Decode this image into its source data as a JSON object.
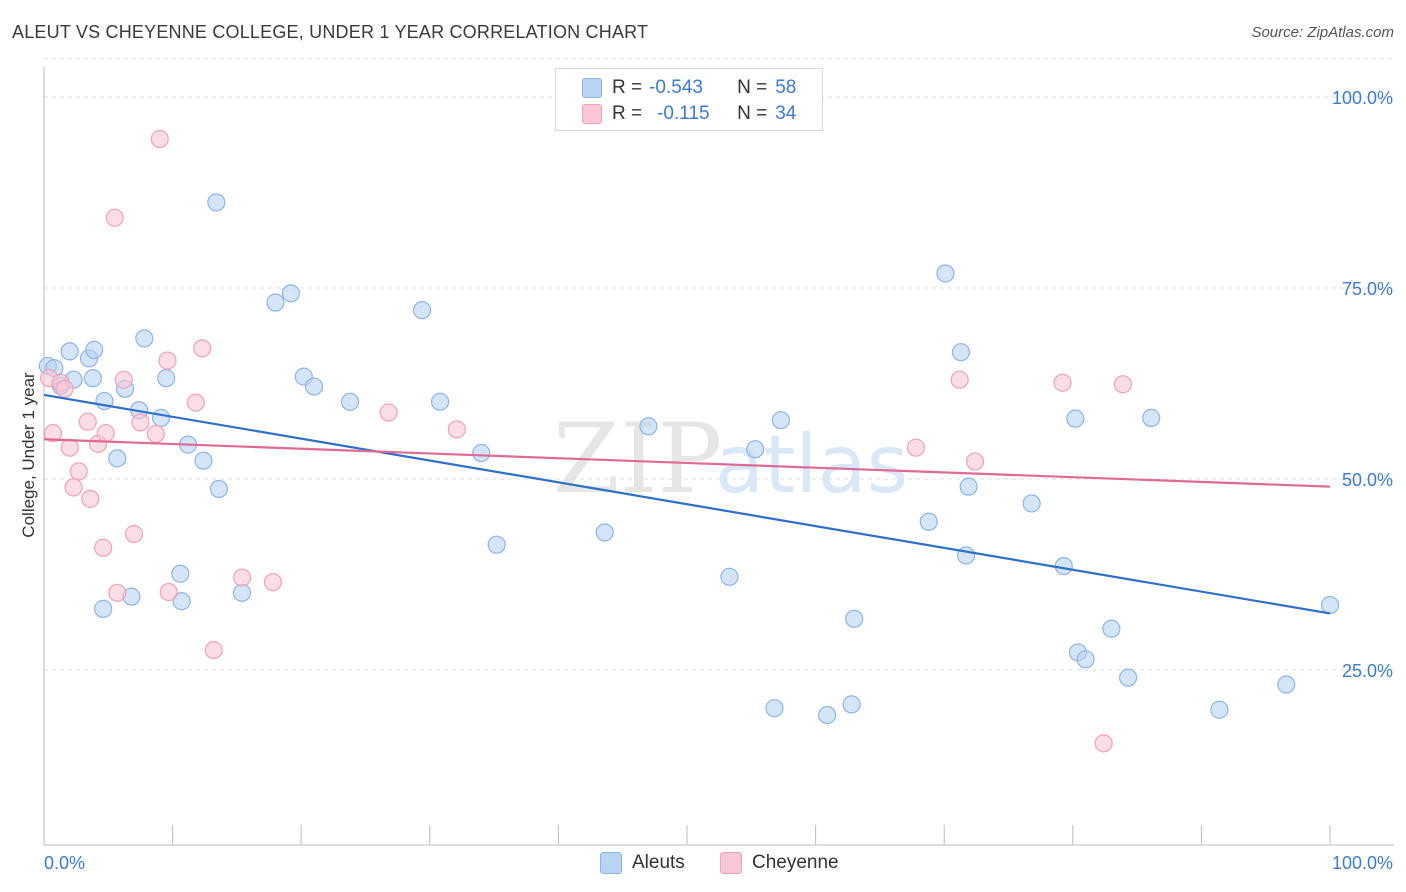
{
  "title": "ALEUT VS CHEYENNE COLLEGE, UNDER 1 YEAR CORRELATION CHART",
  "source": "Source: ZipAtlas.com",
  "watermark": {
    "zip": "ZIP",
    "atlas": "atlas"
  },
  "colors": {
    "aleut_fill": "#b9d3f3",
    "aleut_stroke": "#8fb4e4",
    "aleut_line": "#2f6fcc",
    "cheyenne_fill": "#f8c6d5",
    "cheyenne_stroke": "#eea3b9",
    "cheyenne_line": "#e06a95",
    "tick_label": "#3d7bd0",
    "grid": "#dcdcdc"
  },
  "legend": {
    "rows": [
      {
        "r_label": "R =",
        "r_value": "-0.543",
        "n_label": "N =",
        "n_value": "58"
      },
      {
        "r_label": "R =",
        "r_value": "-0.115",
        "n_label": "N =",
        "n_value": "34"
      }
    ]
  },
  "bottom_legend": {
    "items": [
      "Aleuts",
      "Cheyenne"
    ]
  },
  "chart_data": {
    "type": "scatter",
    "title": "ALEUT VS CHEYENNE COLLEGE, UNDER 1 YEAR CORRELATION CHART",
    "xlabel": "",
    "ylabel": "College, Under 1 year",
    "xlim": [
      0,
      100
    ],
    "ylim": [
      0,
      105
    ],
    "x_tick_labels": [
      "0.0%",
      "100.0%"
    ],
    "y_ticks": [
      25,
      50,
      75,
      100
    ],
    "y_tick_labels": [
      "25.0%",
      "50.0%",
      "75.0%",
      "100.0%"
    ],
    "grid": true,
    "legend_position": "top-center",
    "series": [
      {
        "name": "Aleuts",
        "r": -0.543,
        "n": 58,
        "trend": {
          "x": [
            0,
            100
          ],
          "y": [
            61.0,
            32.4
          ]
        },
        "points": [
          [
            0.3,
            64.8
          ],
          [
            0.8,
            64.5
          ],
          [
            1.3,
            62.2
          ],
          [
            2.0,
            66.7
          ],
          [
            2.3,
            63.0
          ],
          [
            3.5,
            65.8
          ],
          [
            3.8,
            63.2
          ],
          [
            3.9,
            66.9
          ],
          [
            4.6,
            33.0
          ],
          [
            4.7,
            60.2
          ],
          [
            5.7,
            52.7
          ],
          [
            6.3,
            61.8
          ],
          [
            6.8,
            34.6
          ],
          [
            7.4,
            59.0
          ],
          [
            7.8,
            68.4
          ],
          [
            9.1,
            58.0
          ],
          [
            9.5,
            63.2
          ],
          [
            10.6,
            37.6
          ],
          [
            10.7,
            34.0
          ],
          [
            11.2,
            54.5
          ],
          [
            12.4,
            52.4
          ],
          [
            13.4,
            86.2
          ],
          [
            13.6,
            48.7
          ],
          [
            15.4,
            35.1
          ],
          [
            18.0,
            73.1
          ],
          [
            19.2,
            74.3
          ],
          [
            20.2,
            63.4
          ],
          [
            21.0,
            62.1
          ],
          [
            23.8,
            60.1
          ],
          [
            29.4,
            72.1
          ],
          [
            30.8,
            60.1
          ],
          [
            34.0,
            53.4
          ],
          [
            35.2,
            41.4
          ],
          [
            43.6,
            43.0
          ],
          [
            47.0,
            56.9
          ],
          [
            53.3,
            37.2
          ],
          [
            55.3,
            53.9
          ],
          [
            56.8,
            20.0
          ],
          [
            57.3,
            57.7
          ],
          [
            60.9,
            19.1
          ],
          [
            62.8,
            20.5
          ],
          [
            63.0,
            31.7
          ],
          [
            68.8,
            44.4
          ],
          [
            70.1,
            76.9
          ],
          [
            71.3,
            66.6
          ],
          [
            71.7,
            40.0
          ],
          [
            71.9,
            49.0
          ],
          [
            76.8,
            46.8
          ],
          [
            79.3,
            38.6
          ],
          [
            80.2,
            57.9
          ],
          [
            80.4,
            27.3
          ],
          [
            81.0,
            26.4
          ],
          [
            83.0,
            30.4
          ],
          [
            84.3,
            24.0
          ],
          [
            86.1,
            58.0
          ],
          [
            91.4,
            19.8
          ],
          [
            96.6,
            23.1
          ],
          [
            100.0,
            33.5
          ]
        ]
      },
      {
        "name": "Cheyenne",
        "r": -0.115,
        "n": 34,
        "trend": {
          "x": [
            0,
            100
          ],
          "y": [
            55.2,
            49.0
          ]
        },
        "points": [
          [
            0.4,
            63.2
          ],
          [
            0.7,
            56.0
          ],
          [
            1.3,
            62.6
          ],
          [
            1.6,
            61.8
          ],
          [
            2.0,
            54.1
          ],
          [
            2.3,
            48.9
          ],
          [
            2.7,
            51.0
          ],
          [
            3.4,
            57.5
          ],
          [
            3.6,
            47.4
          ],
          [
            4.2,
            54.6
          ],
          [
            4.6,
            41.0
          ],
          [
            4.8,
            56.0
          ],
          [
            5.5,
            84.2
          ],
          [
            5.7,
            35.1
          ],
          [
            6.2,
            63.0
          ],
          [
            7.0,
            42.8
          ],
          [
            7.5,
            57.4
          ],
          [
            8.7,
            55.9
          ],
          [
            9.6,
            65.5
          ],
          [
            9.7,
            35.2
          ],
          [
            9.0,
            94.5
          ],
          [
            11.8,
            60.0
          ],
          [
            12.3,
            67.1
          ],
          [
            13.2,
            27.6
          ],
          [
            15.4,
            37.1
          ],
          [
            17.8,
            36.5
          ],
          [
            26.8,
            58.7
          ],
          [
            32.1,
            56.5
          ],
          [
            67.8,
            54.1
          ],
          [
            71.2,
            63.0
          ],
          [
            72.4,
            52.3
          ],
          [
            79.2,
            62.6
          ],
          [
            83.9,
            62.4
          ],
          [
            82.4,
            15.4
          ]
        ]
      }
    ]
  }
}
